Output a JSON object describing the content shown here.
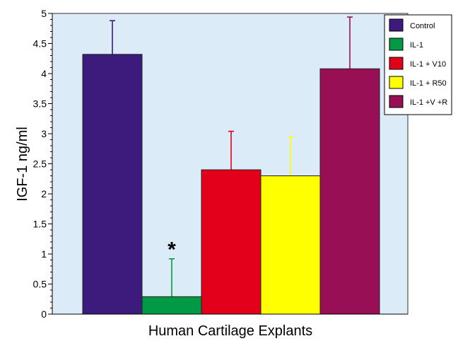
{
  "chart_data": {
    "type": "bar",
    "title": "",
    "xlabel": "Human Cartilage Explants",
    "ylabel": "IGF-1   ng/ml",
    "ylim": [
      0,
      5
    ],
    "yticks": [
      "0",
      "0.5",
      "1",
      "1.5",
      "2",
      "2.5",
      "3",
      "3.5",
      "4",
      "4.5",
      "5"
    ],
    "grid": false,
    "legend_position": "top-right",
    "categories": [
      "Control",
      "IL-1",
      "IL-1 + V10",
      "IL-1 + R50",
      "IL-1 +V +R"
    ],
    "values": [
      4.32,
      0.29,
      2.4,
      2.3,
      4.08
    ],
    "errors": [
      0.56,
      0.63,
      0.64,
      0.65,
      0.86
    ],
    "colors": [
      "#3d1b7c",
      "#009944",
      "#e3001b",
      "#ffff00",
      "#990f55"
    ],
    "plot_background": "#dcebf8",
    "annotations": [
      {
        "text": "*",
        "category": "IL-1",
        "y": 1.15
      }
    ]
  }
}
